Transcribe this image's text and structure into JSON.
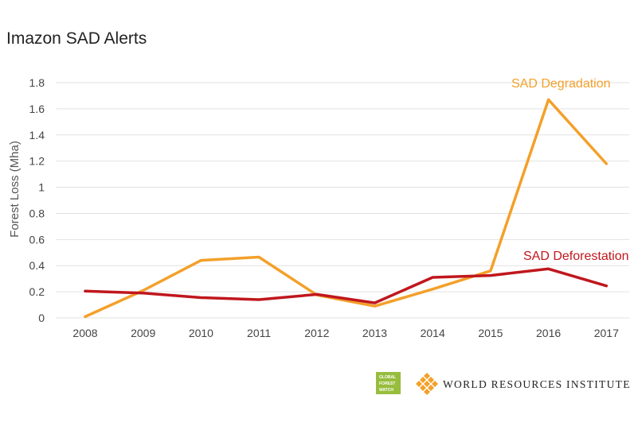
{
  "chart_data": {
    "type": "line",
    "title": "Imazon SAD Alerts",
    "xlabel": "",
    "ylabel": "Forest Loss (Mha)",
    "categories": [
      "2008",
      "2009",
      "2010",
      "2011",
      "2012",
      "2013",
      "2014",
      "2015",
      "2016",
      "2017"
    ],
    "ylim": [
      0,
      1.8
    ],
    "yticks": [
      "0",
      "0.2",
      "0.4",
      "0.6",
      "0.8",
      "1",
      "1.2",
      "1.4",
      "1.6",
      "1.8"
    ],
    "grid": true,
    "legend": "inline labels near line ends",
    "series": [
      {
        "name": "SAD Degradation",
        "color": "#F3A02A",
        "values": [
          0.01,
          0.21,
          0.44,
          0.465,
          0.175,
          0.09,
          0.22,
          0.36,
          1.67,
          1.18
        ]
      },
      {
        "name": "SAD Deforestation",
        "color": "#C0171D",
        "values": [
          0.205,
          0.19,
          0.155,
          0.14,
          0.18,
          0.115,
          0.31,
          0.325,
          0.375,
          0.245
        ]
      }
    ]
  },
  "branding": {
    "gfw_lines": [
      "GLOBAL",
      "FOREST",
      "WATCH"
    ],
    "gfw_color": "#97BD3D",
    "wri_name": "WORLD RESOURCES INSTITUTE",
    "wri_color": "#F3A02A"
  }
}
